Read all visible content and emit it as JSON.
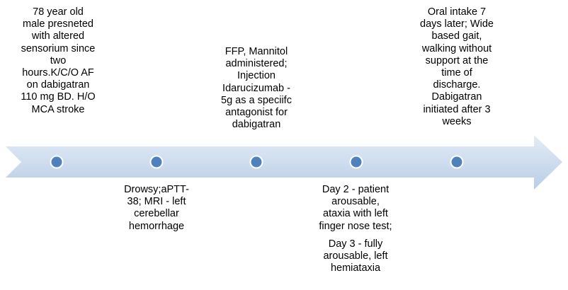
{
  "colors": {
    "arrow_light": "#e3ecf7",
    "arrow_dark": "#b9cde6",
    "marker_fill": "#4f81bd",
    "marker_stroke": "#ffffff"
  },
  "events": [
    {
      "position": "above",
      "lines": [
        "78 year old",
        "male presneted",
        "with altered",
        "sensorium since",
        "two",
        "hours.K/C/O AF",
        "on dabigatran",
        "110 mg BD.  H/O",
        "MCA stroke"
      ]
    },
    {
      "position": "below",
      "lines": [
        "Drowsy;aPTT-",
        "38; MRI - left",
        "cerebellar",
        "hemorrhage"
      ]
    },
    {
      "position": "above",
      "lines": [
        "FFP, Mannitol",
        "administered;",
        "Injection",
        "Idarucizumab  -",
        "5g as a speciifc",
        "antagonist for",
        "dabigatran"
      ]
    },
    {
      "position": "below",
      "lines": [
        "Day 2 - patient",
        "arousable,",
        "ataxia with left",
        "finger nose test;",
        "Day 3 - fully",
        "arousable, left",
        "hemiataxia"
      ]
    },
    {
      "position": "above",
      "lines": [
        "Oral intake 7",
        "days later; Wide",
        "based gait,",
        "walking without",
        "support at the",
        "time of",
        "discharge.",
        "Dabigatran",
        "initiated after 3",
        "weeks"
      ]
    }
  ]
}
